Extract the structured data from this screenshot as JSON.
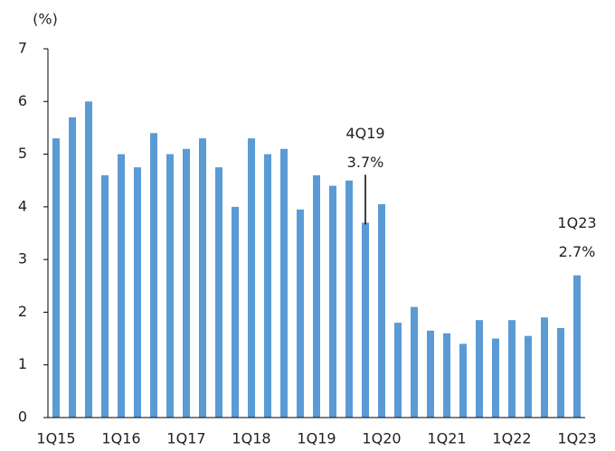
{
  "chart_data": {
    "type": "bar",
    "y_unit": "(%)",
    "categories": [
      "1Q15",
      null,
      null,
      null,
      "1Q16",
      null,
      null,
      null,
      "1Q17",
      null,
      null,
      null,
      "1Q18",
      null,
      null,
      null,
      "1Q19",
      null,
      null,
      null,
      "1Q20",
      null,
      null,
      null,
      "1Q21",
      null,
      null,
      null,
      "1Q22",
      null,
      null,
      null,
      "1Q23"
    ],
    "values": [
      5.3,
      5.7,
      6.0,
      4.6,
      5.0,
      4.75,
      5.4,
      5.0,
      5.1,
      5.3,
      4.75,
      4.0,
      5.3,
      5.0,
      5.1,
      3.95,
      4.6,
      4.4,
      4.5,
      3.7,
      4.05,
      1.8,
      2.1,
      1.65,
      1.6,
      1.4,
      1.85,
      1.5,
      1.85,
      1.55,
      1.9,
      1.7,
      2.7
    ],
    "value_labels": [
      null,
      null,
      null,
      null,
      null,
      null,
      null,
      null,
      null,
      null,
      null,
      null,
      null,
      null,
      null,
      null,
      null,
      null,
      null,
      "3.7%",
      null,
      null,
      null,
      null,
      null,
      null,
      null,
      null,
      null,
      null,
      null,
      null,
      "2.7%"
    ],
    "annotations": [
      "4Q19",
      "1Q23"
    ],
    "color": "#5b9bd5",
    "ylim": [
      0,
      7
    ],
    "yticks": [
      0,
      1,
      2,
      3,
      4,
      5,
      6,
      7
    ],
    "grid": false
  }
}
